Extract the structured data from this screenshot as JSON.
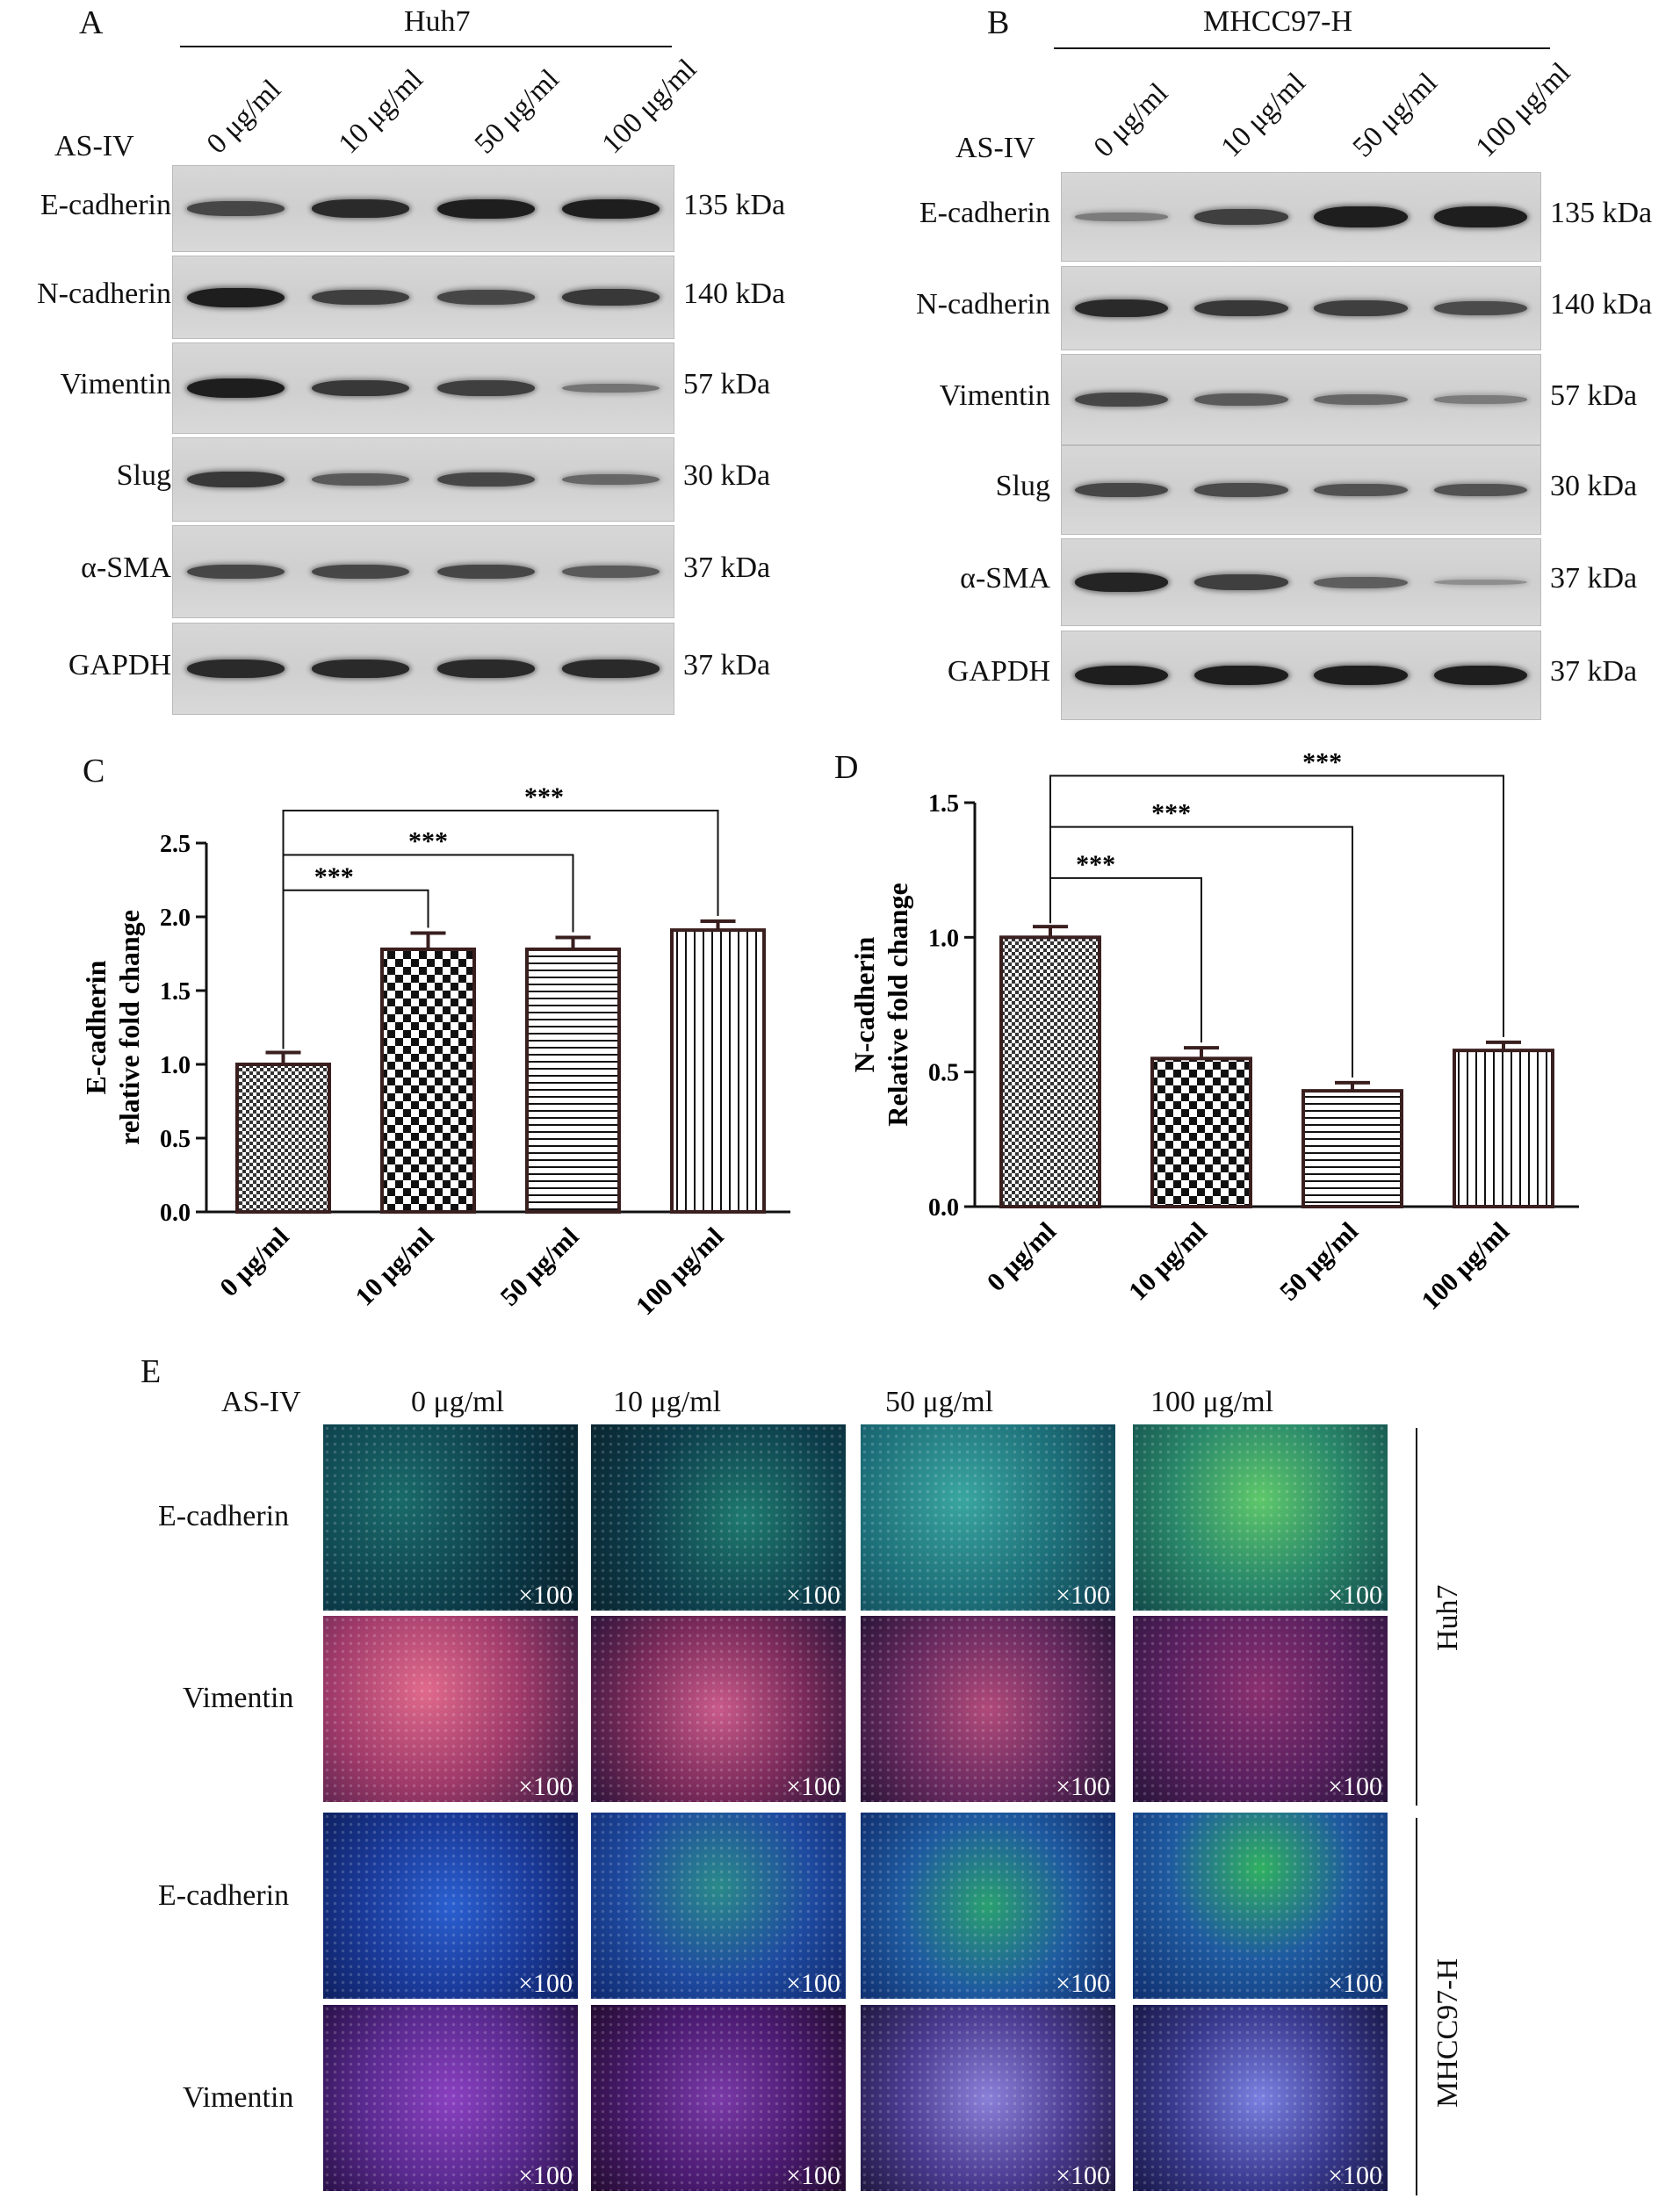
{
  "panel_labels": {
    "a": "A",
    "b": "B",
    "c": "C",
    "d": "D",
    "e": "E"
  },
  "western_a": {
    "cell_line": "Huh7",
    "treatment": "AS-IV",
    "doses": [
      "0 μg/ml",
      "10 μg/ml",
      "50 μg/ml",
      "100 μg/ml"
    ],
    "proteins": [
      "E-cadherin",
      "N-cadherin",
      "Vimentin",
      "Slug",
      "α-SMA",
      "GAPDH"
    ],
    "sizes": [
      "135 kDa",
      "140 kDa",
      "57 kDa",
      "30 kDa",
      "37 kDa",
      "37 kDa"
    ]
  },
  "western_b": {
    "cell_line": "MHCC97-H",
    "treatment": "AS-IV",
    "doses": [
      "0 μg/ml",
      "10 μg/ml",
      "50 μg/ml",
      "100 μg/ml"
    ],
    "proteins": [
      "E-cadherin",
      "N-cadherin",
      "Vimentin",
      "Slug",
      "α-SMA",
      "GAPDH"
    ],
    "sizes": [
      "135 kDa",
      "140 kDa",
      "57 kDa",
      "30 kDa",
      "37 kDa",
      "37 kDa"
    ]
  },
  "chart_data": [
    {
      "type": "bar",
      "categories": [
        "0 μg/ml",
        "10 μg/ml",
        "50 μg/ml",
        "100 μg/ml"
      ],
      "values": [
        1.0,
        1.78,
        1.78,
        1.91
      ],
      "errors": [
        0.08,
        0.11,
        0.08,
        0.06
      ],
      "ylabel_line1": "E-cadherin",
      "ylabel_line2": "relative fold change",
      "ylim": [
        0,
        2.5
      ],
      "yticks": [
        "0.0",
        "0.5",
        "1.0",
        "1.5",
        "2.0",
        "2.5"
      ],
      "significance": [
        "***",
        "***",
        "***"
      ]
    },
    {
      "type": "bar",
      "categories": [
        "0 μg/ml",
        "10 μg/ml",
        "50 μg/ml",
        "100 μg/ml"
      ],
      "values": [
        1.0,
        0.55,
        0.43,
        0.58
      ],
      "errors": [
        0.04,
        0.04,
        0.03,
        0.03
      ],
      "ylabel_line1": "N-cadherin",
      "ylabel_line2": "Relative fold change",
      "ylim": [
        0,
        1.5
      ],
      "yticks": [
        "0.0",
        "0.5",
        "1.0",
        "1.5"
      ],
      "significance": [
        "***",
        "***",
        "***"
      ]
    }
  ],
  "if_panel": {
    "treatment": "AS-IV",
    "doses": [
      "0 μg/ml",
      "10 μg/ml",
      "50 μg/ml",
      "100 μg/ml"
    ],
    "rows": [
      "E-cadherin",
      "Vimentin",
      "E-cadherin",
      "Vimentin"
    ],
    "cell_lines": [
      "Huh7",
      "MHCC97-H"
    ],
    "magnification": "×100"
  }
}
